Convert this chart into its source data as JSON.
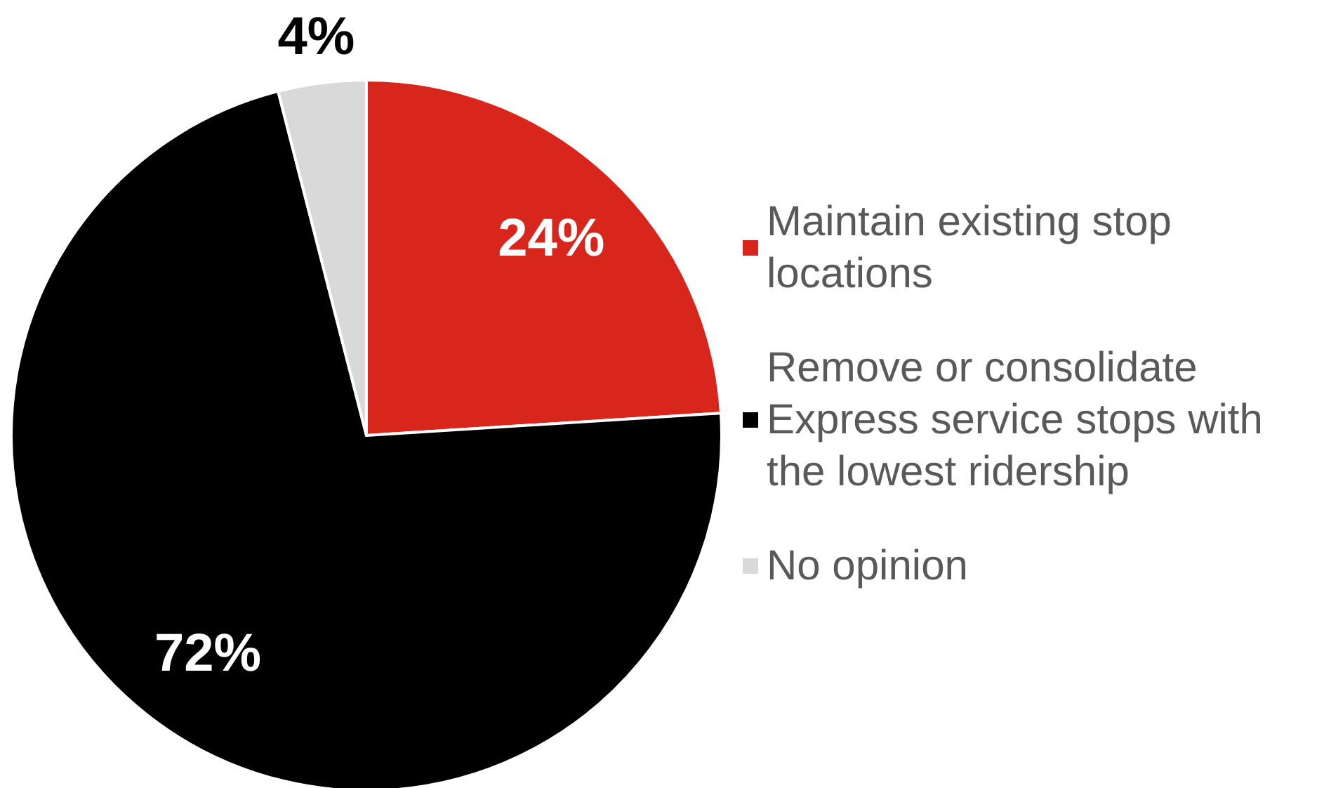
{
  "chart_data": {
    "type": "pie",
    "categories": [
      "Maintain existing stop locations",
      "Remove or consolidate Express service stops with the lowest ridership",
      "No opinion"
    ],
    "values": [
      24,
      72,
      4
    ],
    "colors": [
      "#d9261c",
      "#000000",
      "#d9d9d9"
    ],
    "value_labels": [
      "24%",
      "72%",
      "4%"
    ],
    "legend": "right"
  }
}
